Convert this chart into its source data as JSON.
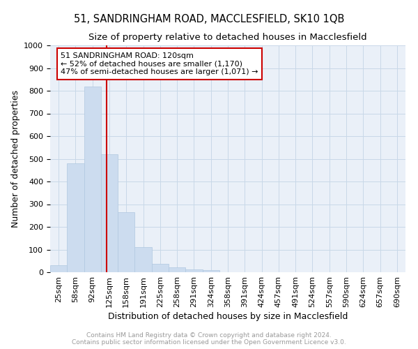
{
  "title": "51, SANDRINGHAM ROAD, MACCLESFIELD, SK10 1QB",
  "subtitle": "Size of property relative to detached houses in Macclesfield",
  "xlabel": "Distribution of detached houses by size in Macclesfield",
  "ylabel": "Number of detached properties",
  "categories": [
    "25sqm",
    "58sqm",
    "92sqm",
    "125sqm",
    "158sqm",
    "191sqm",
    "225sqm",
    "258sqm",
    "291sqm",
    "324sqm",
    "358sqm",
    "391sqm",
    "424sqm",
    "457sqm",
    "491sqm",
    "524sqm",
    "557sqm",
    "590sqm",
    "624sqm",
    "657sqm",
    "690sqm"
  ],
  "values": [
    32,
    480,
    820,
    520,
    265,
    110,
    38,
    22,
    12,
    8,
    0,
    0,
    0,
    0,
    0,
    0,
    0,
    0,
    0,
    0,
    0
  ],
  "bar_color": "#ccdcef",
  "bar_edge_color": "#b0c8e0",
  "red_line_x": 2.82,
  "annotation_text": "51 SANDRINGHAM ROAD: 120sqm\n← 52% of detached houses are smaller (1,170)\n47% of semi-detached houses are larger (1,071) →",
  "annotation_box_color": "#ffffff",
  "annotation_border_color": "#cc0000",
  "ylim": [
    0,
    1000
  ],
  "yticks": [
    0,
    100,
    200,
    300,
    400,
    500,
    600,
    700,
    800,
    900,
    1000
  ],
  "grid_color": "#c8d8e8",
  "background_color": "#eaf0f8",
  "footer_text": "Contains HM Land Registry data © Crown copyright and database right 2024.\nContains public sector information licensed under the Open Government Licence v3.0.",
  "title_fontsize": 10.5,
  "subtitle_fontsize": 9.5,
  "xlabel_fontsize": 9,
  "ylabel_fontsize": 9,
  "tick_fontsize": 8,
  "annotation_fontsize": 8,
  "footer_fontsize": 6.5
}
